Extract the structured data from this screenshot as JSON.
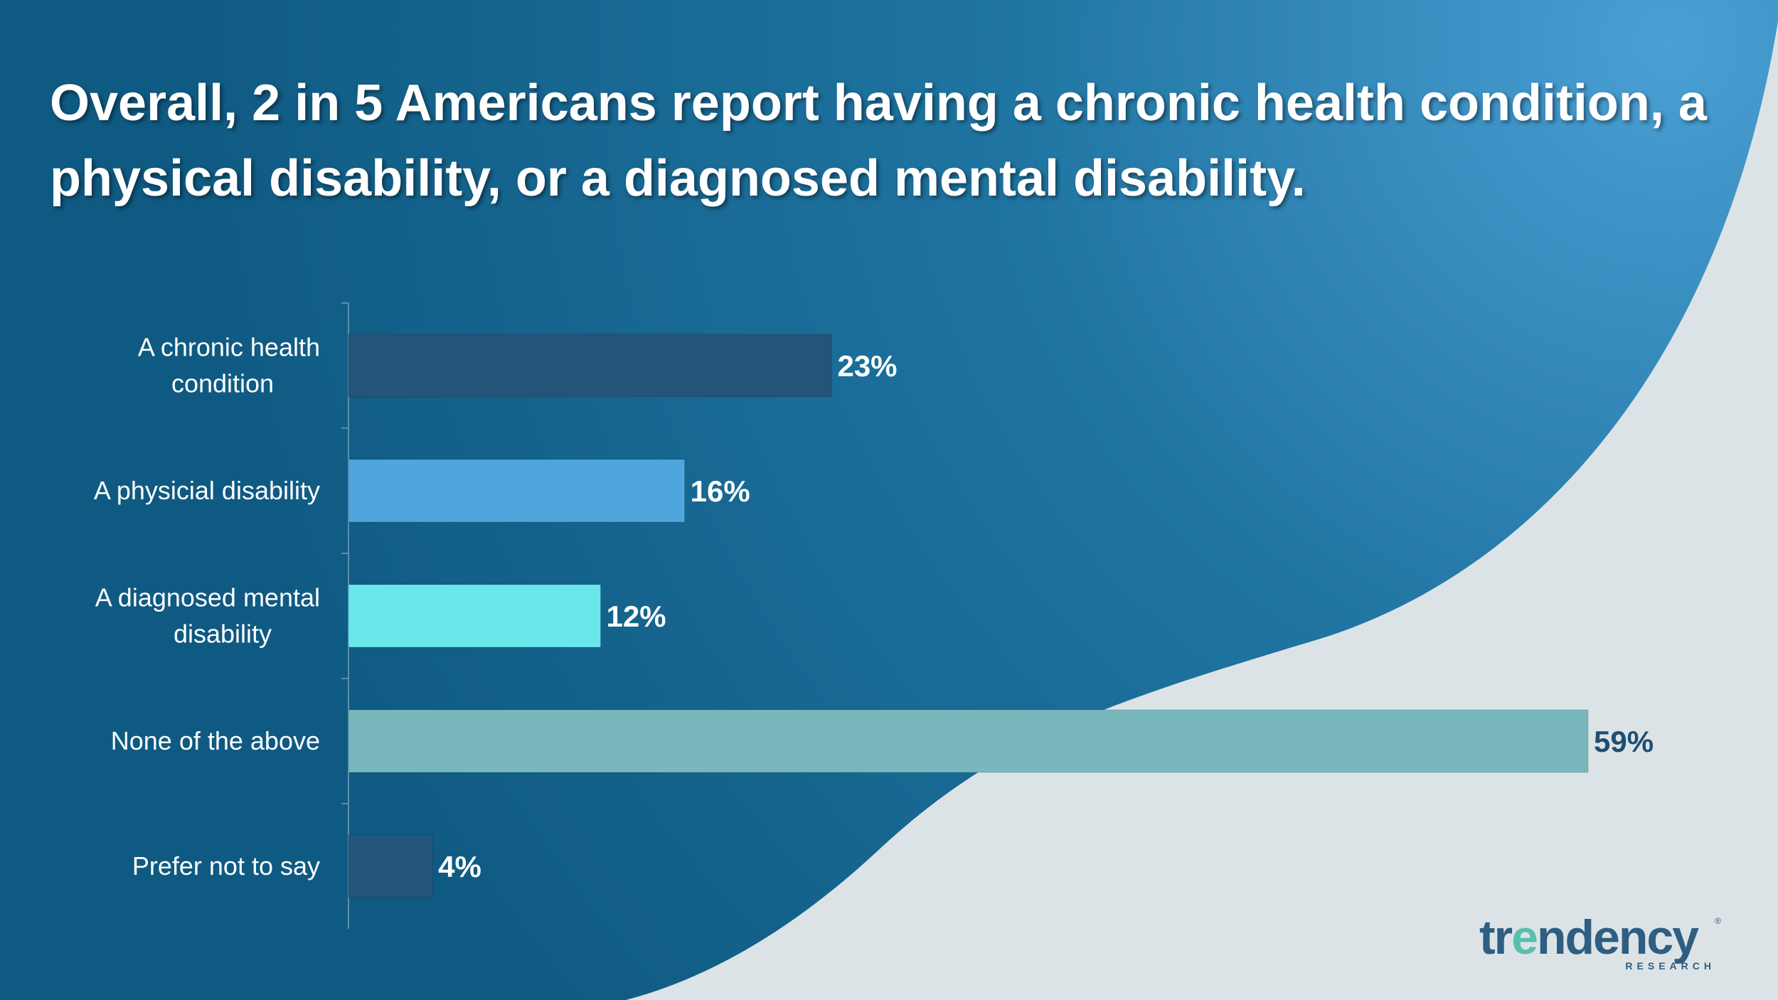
{
  "slide": {
    "title": "Overall, 2 in 5 Americans report having a chronic health condition, a physical disability, or a diagnosed mental disability."
  },
  "colors": {
    "background_light": "#dce3e7",
    "background_dark": "#12618a",
    "background_glow": "#4a9fd4",
    "bar_chronic": "#23557a",
    "bar_physical": "#4fa6dc",
    "bar_mental": "#6ae6ea",
    "bar_none": "#78b8bd",
    "bar_prefer": "#23557a",
    "label_on_dark": "#ffffff",
    "label_on_light": "#1f4e73"
  },
  "chart_data": {
    "type": "bar",
    "orientation": "horizontal",
    "categories": [
      "A chronic health condition",
      "A physicial disability",
      "A diagnosed mental disability",
      "None of the above",
      "Prefer not to say"
    ],
    "category_lines": [
      [
        "A chronic health",
        "condition"
      ],
      [
        "A physicial disability"
      ],
      [
        "A diagnosed mental",
        "disability"
      ],
      [
        "None of the above"
      ],
      [
        "Prefer not to say"
      ]
    ],
    "values": [
      23,
      16,
      12,
      59,
      4
    ],
    "value_labels": [
      "23%",
      "16%",
      "12%",
      "59%",
      "4%"
    ],
    "bar_colors": [
      "#23557a",
      "#4fa6dc",
      "#6ae6ea",
      "#78b8bd",
      "#23557a"
    ],
    "label_colors": [
      "#ffffff",
      "#ffffff",
      "#ffffff",
      "#1f4e73",
      "#ffffff"
    ],
    "xlim": [
      0,
      59
    ],
    "grid": false,
    "legend": "none"
  },
  "logo": {
    "text_start": "tr",
    "text_accent": "e",
    "text_end": "ndency",
    "subtext": "RESEARCH",
    "registered": "®"
  }
}
